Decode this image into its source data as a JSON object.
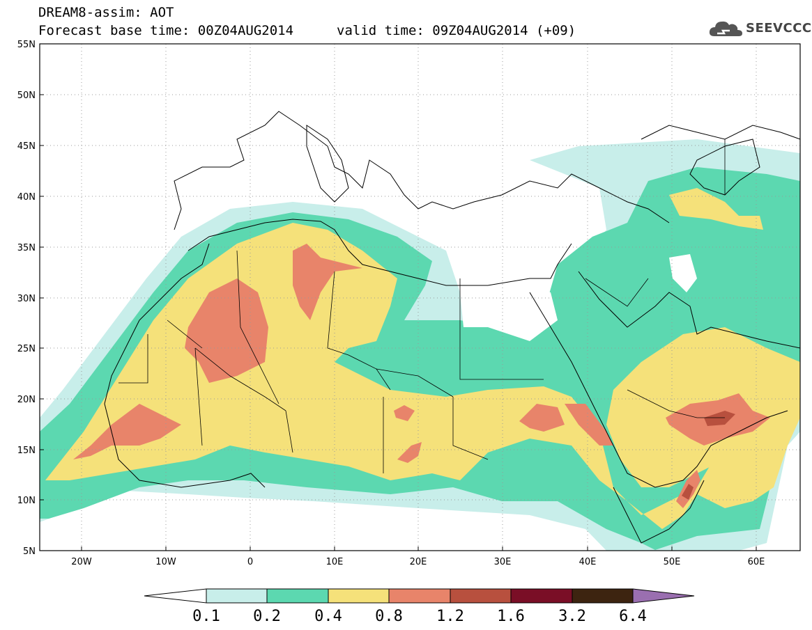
{
  "header": {
    "title_line1": "DREAM8-assim: AOT",
    "base_time": "Forecast base time: 00Z04AUG2014",
    "valid_time": "valid time: 09Z04AUG2014 (+09)",
    "logo_text": "SEEVCCC"
  },
  "map": {
    "lat_labels": [
      "55N",
      "50N",
      "45N",
      "40N",
      "35N",
      "30N",
      "25N",
      "20N",
      "15N",
      "10N",
      "5N"
    ],
    "lon_labels": [
      "20W",
      "10W",
      "0",
      "10E",
      "20E",
      "30E",
      "40E",
      "50E",
      "60E"
    ],
    "lat_range": [
      5,
      55
    ],
    "lon_range": [
      -25,
      65
    ],
    "grid": "dotted",
    "colors": {
      "c01": "#c8eeea",
      "c02": "#5cd8b0",
      "c04": "#f5e17a",
      "c08": "#e8846a",
      "c12": "#b8503e",
      "c16": "#7a0e26",
      "c32": "#3d2410",
      "c64": "#9a6fb0"
    }
  },
  "colorbar": {
    "labels": [
      "0.1",
      "0.2",
      "0.4",
      "0.8",
      "1.2",
      "1.6",
      "3.2",
      "6.4"
    ],
    "colors": [
      "#c8eeea",
      "#5cd8b0",
      "#f5e17a",
      "#e8846a",
      "#b8503e",
      "#7a0e26",
      "#3d2410"
    ],
    "under_color": "#ffffff",
    "over_color": "#9a6fb0"
  }
}
